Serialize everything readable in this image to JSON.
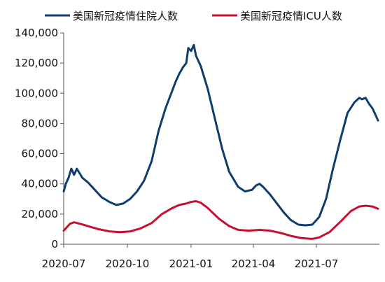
{
  "chart_data": {
    "type": "line",
    "title": "",
    "xlabel": "",
    "ylabel": "",
    "ylim": [
      0,
      140000
    ],
    "yticks": [
      0,
      20000,
      40000,
      60000,
      80000,
      100000,
      120000,
      140000
    ],
    "ytick_labels": [
      "0",
      "20,000",
      "40,000",
      "60,000",
      "80,000",
      "100,000",
      "120,000",
      "140,000"
    ],
    "xtick_labels": [
      "2020-07",
      "2020-10",
      "2021-01",
      "2021-04",
      "2021-07"
    ],
    "xtick_dates": [
      "2020-07-01",
      "2020-10-01",
      "2021-01-01",
      "2021-04-01",
      "2021-07-01"
    ],
    "xlim": [
      "2020-07-01",
      "2021-09-30"
    ],
    "grid": false,
    "legend_position": "top",
    "series": [
      {
        "name": "美国新冠疫情住院人数",
        "color": "#0f3d6e",
        "points": [
          [
            "2020-07-01",
            35000
          ],
          [
            "2020-07-04",
            40000
          ],
          [
            "2020-07-08",
            44000
          ],
          [
            "2020-07-12",
            50000
          ],
          [
            "2020-07-16",
            46000
          ],
          [
            "2020-07-20",
            50000
          ],
          [
            "2020-07-24",
            47000
          ],
          [
            "2020-07-28",
            44000
          ],
          [
            "2020-08-05",
            41000
          ],
          [
            "2020-08-15",
            36000
          ],
          [
            "2020-08-25",
            31000
          ],
          [
            "2020-09-05",
            28000
          ],
          [
            "2020-09-15",
            26000
          ],
          [
            "2020-09-25",
            27000
          ],
          [
            "2020-10-05",
            30000
          ],
          [
            "2020-10-15",
            35000
          ],
          [
            "2020-10-25",
            42000
          ],
          [
            "2020-11-05",
            55000
          ],
          [
            "2020-11-15",
            75000
          ],
          [
            "2020-11-25",
            90000
          ],
          [
            "2020-12-05",
            102000
          ],
          [
            "2020-12-10",
            108000
          ],
          [
            "2020-12-15",
            113000
          ],
          [
            "2020-12-20",
            117000
          ],
          [
            "2020-12-25",
            120000
          ],
          [
            "2020-12-28",
            130000
          ],
          [
            "2021-01-01",
            128000
          ],
          [
            "2021-01-05",
            132000
          ],
          [
            "2021-01-08",
            125000
          ],
          [
            "2021-01-15",
            118000
          ],
          [
            "2021-01-25",
            103000
          ],
          [
            "2021-02-05",
            82000
          ],
          [
            "2021-02-15",
            63000
          ],
          [
            "2021-02-25",
            48000
          ],
          [
            "2021-03-10",
            38000
          ],
          [
            "2021-03-20",
            35000
          ],
          [
            "2021-03-30",
            36000
          ],
          [
            "2021-04-05",
            39000
          ],
          [
            "2021-04-10",
            40000
          ],
          [
            "2021-04-15",
            38000
          ],
          [
            "2021-04-25",
            33000
          ],
          [
            "2021-05-05",
            27000
          ],
          [
            "2021-05-15",
            21000
          ],
          [
            "2021-05-25",
            16000
          ],
          [
            "2021-06-05",
            13000
          ],
          [
            "2021-06-15",
            12500
          ],
          [
            "2021-06-25",
            13000
          ],
          [
            "2021-07-05",
            18000
          ],
          [
            "2021-07-15",
            30000
          ],
          [
            "2021-07-25",
            50000
          ],
          [
            "2021-08-05",
            70000
          ],
          [
            "2021-08-15",
            87000
          ],
          [
            "2021-08-25",
            94000
          ],
          [
            "2021-09-01",
            97000
          ],
          [
            "2021-09-05",
            96000
          ],
          [
            "2021-09-10",
            97000
          ],
          [
            "2021-09-15",
            93000
          ],
          [
            "2021-09-20",
            90000
          ],
          [
            "2021-09-25",
            85000
          ],
          [
            "2021-09-28",
            82000
          ]
        ]
      },
      {
        "name": "美国新冠疫情ICU人数",
        "color": "#c8102e",
        "points": [
          [
            "2020-07-01",
            9000
          ],
          [
            "2020-07-05",
            11000
          ],
          [
            "2020-07-10",
            13500
          ],
          [
            "2020-07-16",
            14500
          ],
          [
            "2020-07-25",
            13500
          ],
          [
            "2020-08-05",
            12000
          ],
          [
            "2020-08-20",
            10000
          ],
          [
            "2020-09-05",
            8500
          ],
          [
            "2020-09-20",
            8000
          ],
          [
            "2020-10-05",
            8500
          ],
          [
            "2020-10-20",
            10500
          ],
          [
            "2020-11-05",
            14000
          ],
          [
            "2020-11-20",
            20000
          ],
          [
            "2020-12-05",
            24000
          ],
          [
            "2020-12-15",
            26000
          ],
          [
            "2020-12-25",
            27000
          ],
          [
            "2021-01-01",
            28000
          ],
          [
            "2021-01-08",
            28500
          ],
          [
            "2021-01-15",
            27500
          ],
          [
            "2021-01-25",
            24000
          ],
          [
            "2021-02-10",
            17000
          ],
          [
            "2021-02-25",
            12000
          ],
          [
            "2021-03-10",
            9500
          ],
          [
            "2021-03-25",
            9000
          ],
          [
            "2021-04-10",
            9500
          ],
          [
            "2021-04-25",
            9000
          ],
          [
            "2021-05-10",
            7500
          ],
          [
            "2021-05-25",
            5500
          ],
          [
            "2021-06-10",
            4000
          ],
          [
            "2021-06-25",
            3500
          ],
          [
            "2021-07-05",
            4500
          ],
          [
            "2021-07-20",
            8000
          ],
          [
            "2021-08-05",
            15000
          ],
          [
            "2021-08-20",
            22000
          ],
          [
            "2021-09-01",
            25000
          ],
          [
            "2021-09-10",
            25500
          ],
          [
            "2021-09-20",
            25000
          ],
          [
            "2021-09-28",
            23500
          ]
        ]
      }
    ]
  }
}
